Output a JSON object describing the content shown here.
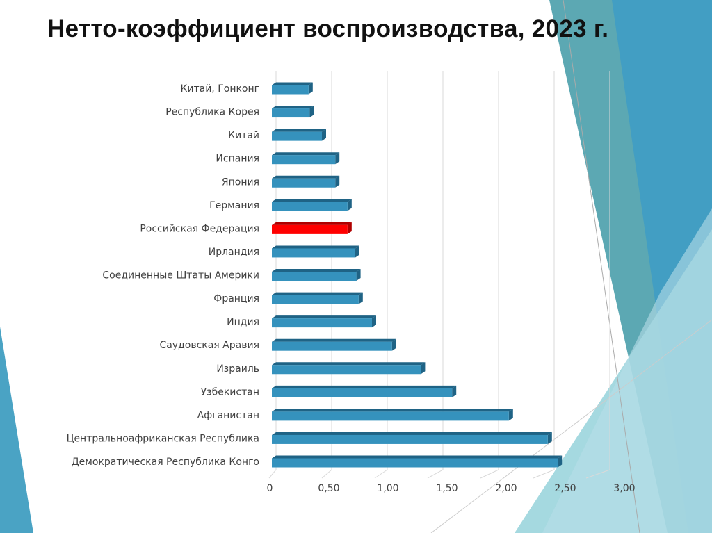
{
  "title": "Нетто-коэффициент воспроизводства, 2023 г.",
  "colors": {
    "bar": "#3592bd",
    "highlight": "#ff0000",
    "decor": [
      "#5ca8b3",
      "#3f9cc4",
      "#8fcfd8",
      "#b7dde8"
    ]
  },
  "chart_data": {
    "type": "bar",
    "orientation": "horizontal",
    "style": "3d",
    "title": "Нетто-коэффициент воспроизводства, 2023 г.",
    "categories": [
      "Китай, Гонконг",
      "Республика Корея",
      "Китай",
      "Испания",
      "Япония",
      "Германия",
      "Российская Федерация",
      "Ирландия",
      "Соединенные Штаты Америки",
      "Франция",
      "Индия",
      "Саудовская Аравия",
      "Израиль",
      "Узбекистан",
      "Афганистан",
      "Центральноафриканская Республика",
      "Демократическая Республика Конго"
    ],
    "values": [
      0.33,
      0.34,
      0.45,
      0.57,
      0.57,
      0.68,
      0.68,
      0.75,
      0.76,
      0.78,
      0.9,
      1.08,
      1.34,
      1.62,
      2.13,
      2.48,
      2.57
    ],
    "highlight": "Российская Федерация",
    "xlim": [
      0,
      3
    ],
    "ticks": [
      "0",
      "0,50",
      "1,00",
      "1,50",
      "2,00",
      "2,50",
      "3,00"
    ],
    "tick_values": [
      0,
      0.5,
      1,
      1.5,
      2,
      2.5,
      3
    ],
    "grid": true,
    "xlabel": "",
    "ylabel": ""
  }
}
